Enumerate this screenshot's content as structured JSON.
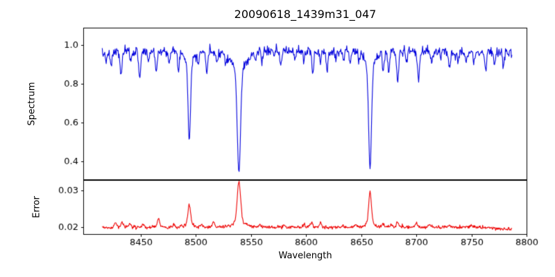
{
  "figure": {
    "title": "20090618_1439m31_047",
    "background": "#ffffff"
  },
  "chart_data": {
    "type": "line",
    "title": "20090618_1439m31_047",
    "xlabel": "Wavelength",
    "xlim": [
      8398.4,
      8800
    ],
    "x_ticks": [
      8450,
      8500,
      8550,
      8600,
      8650,
      8700,
      8750,
      8800
    ],
    "x_data_range": [
      8415,
      8787
    ],
    "x_step": 0.45,
    "grid": false,
    "legend": false,
    "seed": 7,
    "panels": [
      {
        "name": "spectrum",
        "ylabel": "Spectrum",
        "ylim": [
          0.304,
          1.086
        ],
        "y_ticks": [
          1.0,
          0.8,
          0.6,
          0.4
        ],
        "y_tick_labels": [
          "1.0",
          "0.8",
          "0.6",
          "0.4"
        ],
        "line_color": "#0000dd",
        "line_width": 1.1,
        "baseline_points": [
          [
            8415,
            0.952
          ],
          [
            8428,
            0.965
          ],
          [
            8500,
            0.968
          ],
          [
            8620,
            0.968
          ],
          [
            8700,
            0.966
          ],
          [
            8787,
            0.962
          ]
        ],
        "noise_sigma": 0.012,
        "noise_flux_scaled": true,
        "absorption_lines": [
          [
            8419,
            0.04,
            0.7
          ],
          [
            8423,
            0.07,
            0.8
          ],
          [
            8432,
            0.12,
            0.9
          ],
          [
            8441,
            0.05,
            0.7
          ],
          [
            8449,
            0.13,
            0.9
          ],
          [
            8457,
            0.05,
            0.7
          ],
          [
            8464,
            0.1,
            0.8
          ],
          [
            8476,
            0.05,
            0.7
          ],
          [
            8484,
            0.09,
            0.8
          ],
          [
            8494,
            0.41,
            1.1
          ],
          [
            8494,
            0.05,
            4.0
          ],
          [
            8502,
            0.05,
            0.7
          ],
          [
            8510,
            0.11,
            0.9
          ],
          [
            8519,
            0.06,
            0.7
          ],
          [
            8527,
            0.04,
            0.6
          ],
          [
            8539,
            0.53,
            1.5
          ],
          [
            8539,
            0.09,
            7.0
          ],
          [
            8554,
            0.04,
            0.7
          ],
          [
            8560,
            0.05,
            0.6
          ],
          [
            8571,
            0.04,
            0.6
          ],
          [
            8577,
            0.07,
            0.8
          ],
          [
            8590,
            0.04,
            0.6
          ],
          [
            8598,
            0.05,
            0.7
          ],
          [
            8606,
            0.11,
            0.9
          ],
          [
            8613,
            0.06,
            0.7
          ],
          [
            8619,
            0.1,
            0.8
          ],
          [
            8627,
            0.04,
            0.6
          ],
          [
            8634,
            0.04,
            0.6
          ],
          [
            8640,
            0.05,
            0.7
          ],
          [
            8648,
            0.05,
            0.6
          ],
          [
            8658,
            0.53,
            1.3
          ],
          [
            8658,
            0.07,
            5.0
          ],
          [
            8670,
            0.09,
            0.8
          ],
          [
            8675,
            0.11,
            0.8
          ],
          [
            8683,
            0.15,
            0.9
          ],
          [
            8691,
            0.05,
            0.7
          ],
          [
            8702,
            0.15,
            0.9
          ],
          [
            8714,
            0.06,
            0.7
          ],
          [
            8722,
            0.04,
            0.6
          ],
          [
            8730,
            0.09,
            0.8
          ],
          [
            8738,
            0.05,
            0.6
          ],
          [
            8745,
            0.05,
            0.7
          ],
          [
            8752,
            0.06,
            0.7
          ],
          [
            8763,
            0.1,
            0.8
          ],
          [
            8771,
            0.06,
            0.7
          ],
          [
            8779,
            0.07,
            0.7
          ]
        ]
      },
      {
        "name": "error",
        "ylabel": "Error",
        "ylim": [
          0.0181,
          0.0328
        ],
        "y_ticks": [
          0.03,
          0.02
        ],
        "y_tick_labels": [
          "0.03",
          "0.02"
        ],
        "line_color": "#ee0000",
        "line_width": 1.1,
        "baseline_points": [
          [
            8415,
            0.0198
          ],
          [
            8430,
            0.0199
          ],
          [
            8500,
            0.02
          ],
          [
            8700,
            0.02
          ],
          [
            8755,
            0.02
          ],
          [
            8787,
            0.0193
          ]
        ],
        "noise_sigma": 0.00022,
        "noise_flux_scaled": false,
        "peaks": [
          [
            8427,
            0.0013,
            1.0
          ],
          [
            8433,
            0.0015,
            1.0
          ],
          [
            8440,
            0.001,
            0.9
          ],
          [
            8452,
            0.0008,
            0.9
          ],
          [
            8466,
            0.0022,
            1.1
          ],
          [
            8480,
            0.0007,
            0.9
          ],
          [
            8494,
            0.0056,
            1.2
          ],
          [
            8494,
            0.0006,
            4.0
          ],
          [
            8505,
            0.0007,
            0.9
          ],
          [
            8516,
            0.0013,
            1.0
          ],
          [
            8539,
            0.011,
            1.6
          ],
          [
            8539,
            0.0012,
            6.0
          ],
          [
            8558,
            0.0006,
            0.9
          ],
          [
            8580,
            0.0006,
            0.9
          ],
          [
            8598,
            0.0007,
            0.9
          ],
          [
            8605,
            0.0013,
            1.0
          ],
          [
            8613,
            0.0011,
            0.9
          ],
          [
            8633,
            0.0006,
            0.8
          ],
          [
            8645,
            0.0006,
            0.8
          ],
          [
            8658,
            0.0086,
            1.3
          ],
          [
            8658,
            0.0008,
            4.0
          ],
          [
            8670,
            0.0009,
            0.9
          ],
          [
            8677,
            0.0008,
            0.9
          ],
          [
            8683,
            0.0012,
            1.0
          ],
          [
            8700,
            0.001,
            1.0
          ],
          [
            8712,
            0.0006,
            0.9
          ],
          [
            8730,
            0.0007,
            0.9
          ],
          [
            8750,
            0.0005,
            0.9
          ]
        ]
      }
    ]
  }
}
